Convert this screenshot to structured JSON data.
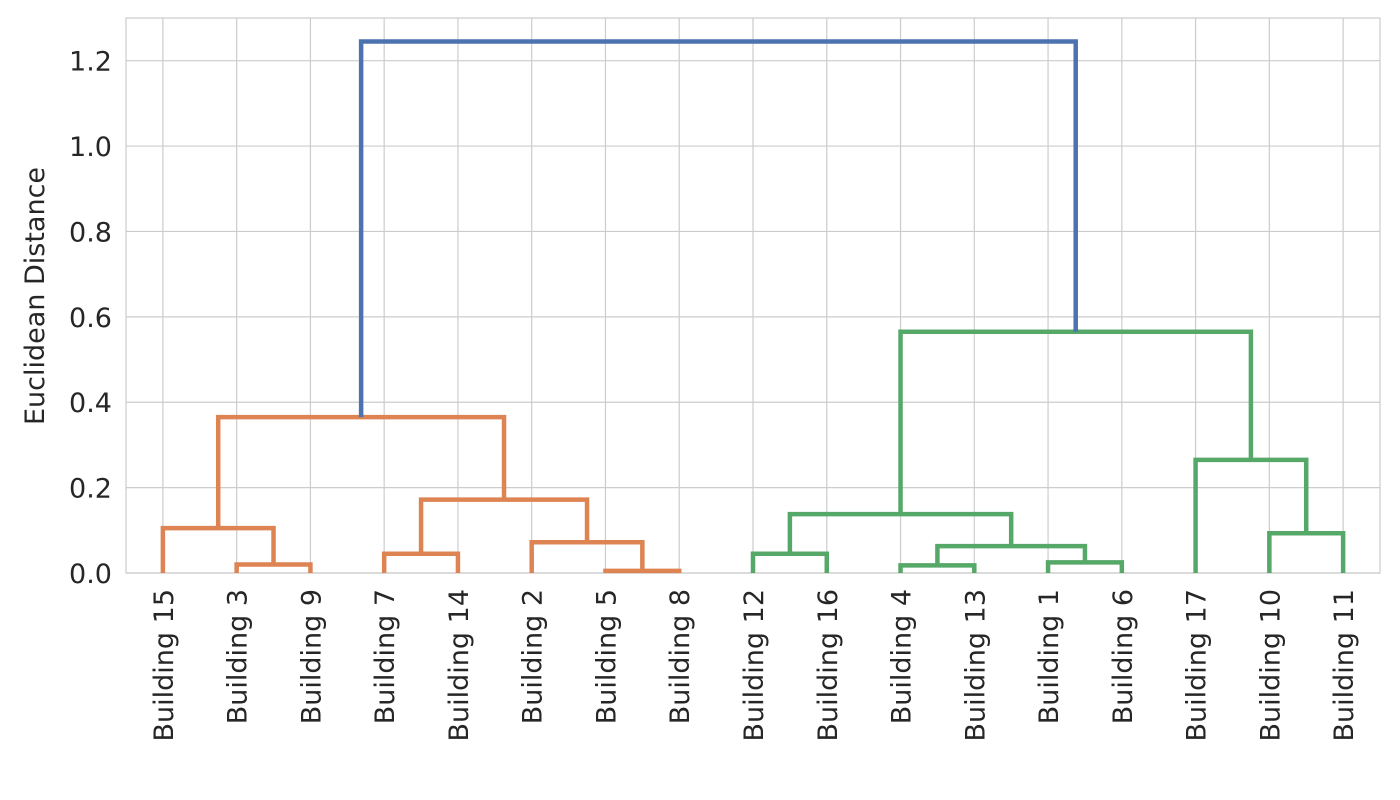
{
  "chart_data": {
    "type": "dendrogram",
    "ylabel": "Euclidean Distance",
    "ylim": [
      0,
      1.3
    ],
    "yticks": [
      "0.0",
      "0.2",
      "0.4",
      "0.6",
      "0.8",
      "1.0",
      "1.2"
    ],
    "grid": true,
    "leaves": [
      "Building 15",
      "Building 3",
      "Building 9",
      "Building 7",
      "Building 14",
      "Building 2",
      "Building 5",
      "Building 8",
      "Building 12",
      "Building 16",
      "Building 4",
      "Building 13",
      "Building 1",
      "Building 6",
      "Building 17",
      "Building 10",
      "Building 11"
    ],
    "colors": {
      "cluster_a": "#dd8452",
      "cluster_b": "#55a868",
      "root": "#4c72b0"
    },
    "merges": [
      {
        "id": "m1",
        "left": 1,
        "right": 2,
        "height": 0.02,
        "color": "cluster_a"
      },
      {
        "id": "m2",
        "left": 0,
        "right": "m1",
        "height": 0.105,
        "color": "cluster_a"
      },
      {
        "id": "m3",
        "left": 3,
        "right": 4,
        "height": 0.045,
        "color": "cluster_a"
      },
      {
        "id": "m4",
        "left": 6,
        "right": 7,
        "height": 0.005,
        "color": "cluster_a"
      },
      {
        "id": "m5",
        "left": 5,
        "right": "m4",
        "height": 0.072,
        "color": "cluster_a"
      },
      {
        "id": "m6",
        "left": "m3",
        "right": "m5",
        "height": 0.172,
        "color": "cluster_a"
      },
      {
        "id": "m7",
        "left": "m2",
        "right": "m6",
        "height": 0.365,
        "color": "cluster_a"
      },
      {
        "id": "m8",
        "left": 8,
        "right": 9,
        "height": 0.045,
        "color": "cluster_b"
      },
      {
        "id": "m9",
        "left": 10,
        "right": 11,
        "height": 0.018,
        "color": "cluster_b"
      },
      {
        "id": "m10",
        "left": 12,
        "right": 13,
        "height": 0.025,
        "color": "cluster_b"
      },
      {
        "id": "m11",
        "left": "m9",
        "right": "m10",
        "height": 0.063,
        "color": "cluster_b"
      },
      {
        "id": "m12",
        "left": "m8",
        "right": "m11",
        "height": 0.138,
        "color": "cluster_b"
      },
      {
        "id": "m13",
        "left": 15,
        "right": 16,
        "height": 0.093,
        "color": "cluster_b"
      },
      {
        "id": "m14",
        "left": 14,
        "right": "m13",
        "height": 0.265,
        "color": "cluster_b"
      },
      {
        "id": "m15",
        "left": "m12",
        "right": "m14",
        "height": 0.565,
        "color": "cluster_b"
      },
      {
        "id": "m16",
        "left": "m7",
        "right": "m15",
        "height": 1.245,
        "color": "root"
      }
    ]
  }
}
